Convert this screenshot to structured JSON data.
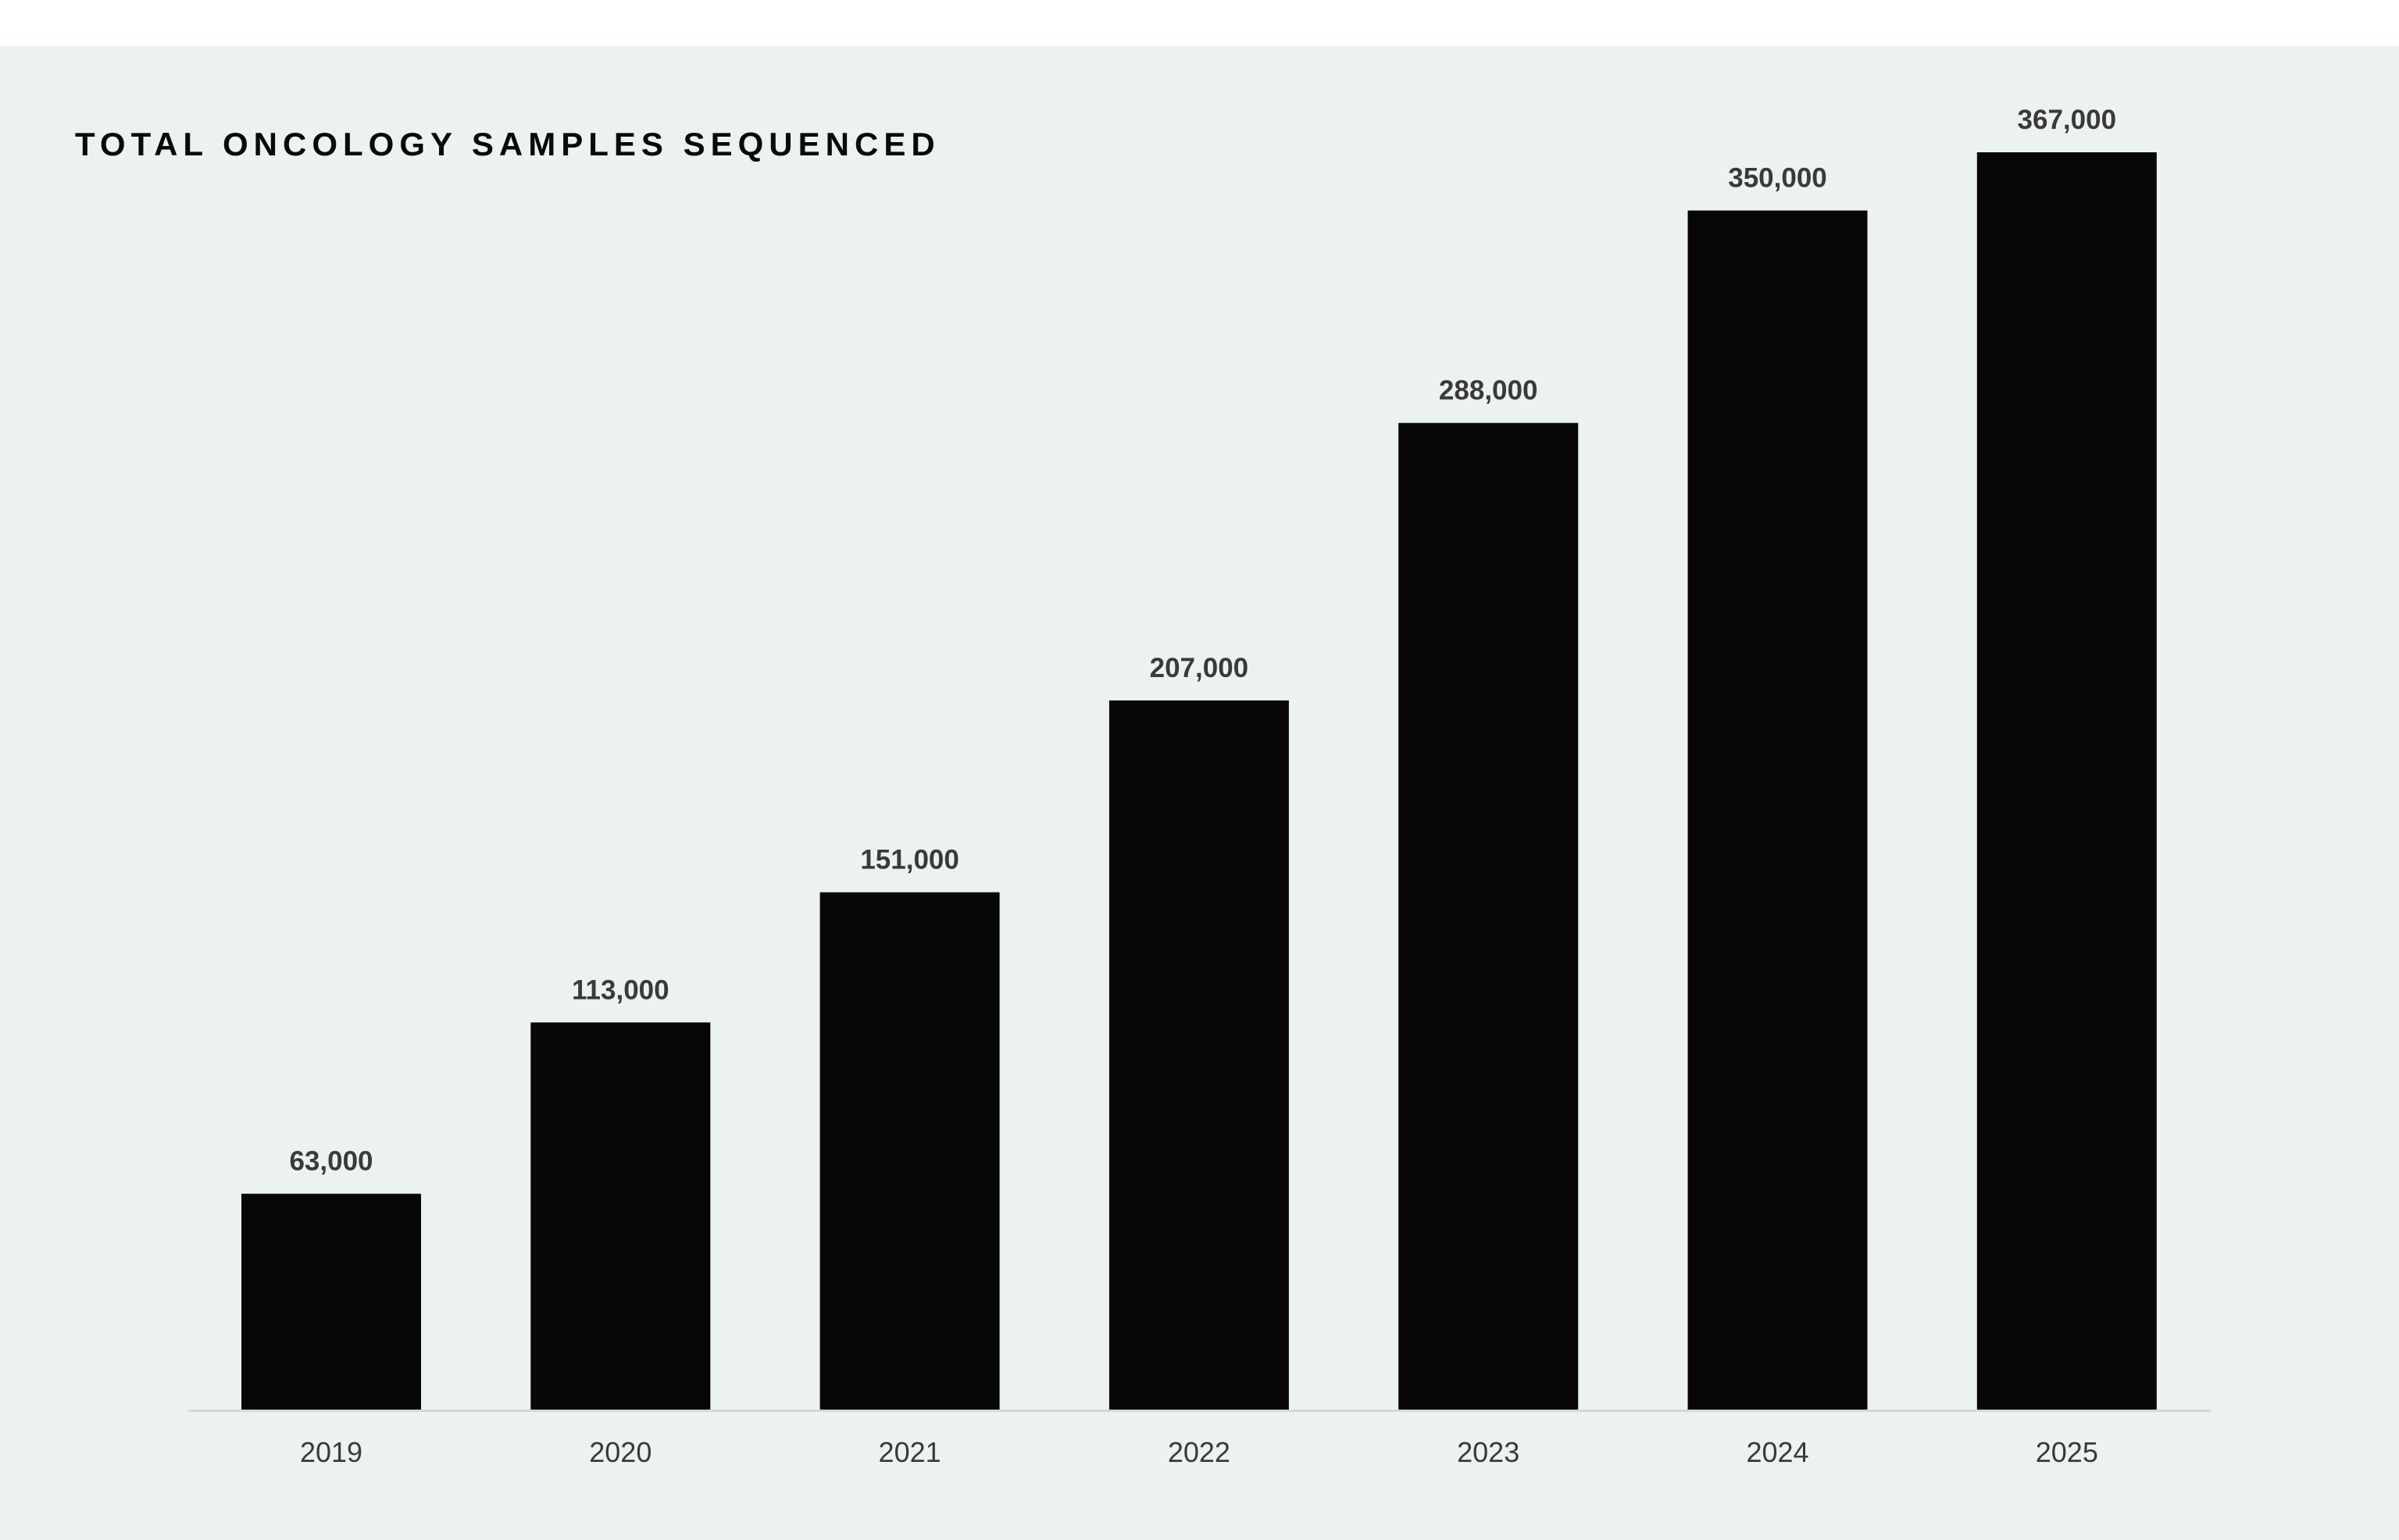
{
  "chart_data": {
    "type": "bar",
    "title": "TOTAL ONCOLOGY SAMPLES SEQUENCED",
    "categories": [
      "2019",
      "2020",
      "2021",
      "2022",
      "2023",
      "2024",
      "2025"
    ],
    "values": [
      63000,
      113000,
      151000,
      207000,
      288000,
      350000,
      367000
    ],
    "data_labels": [
      "63,000",
      "113,000",
      "151,000",
      "207,000",
      "288,000",
      "350,000",
      "367,000"
    ],
    "xlabel": "",
    "ylabel": "",
    "ylim": [
      0,
      367000
    ],
    "grid": false,
    "legend": "none",
    "colors": {
      "bar": "#070707",
      "background": "#ecf2f1",
      "label": "#3a3a3a"
    }
  }
}
